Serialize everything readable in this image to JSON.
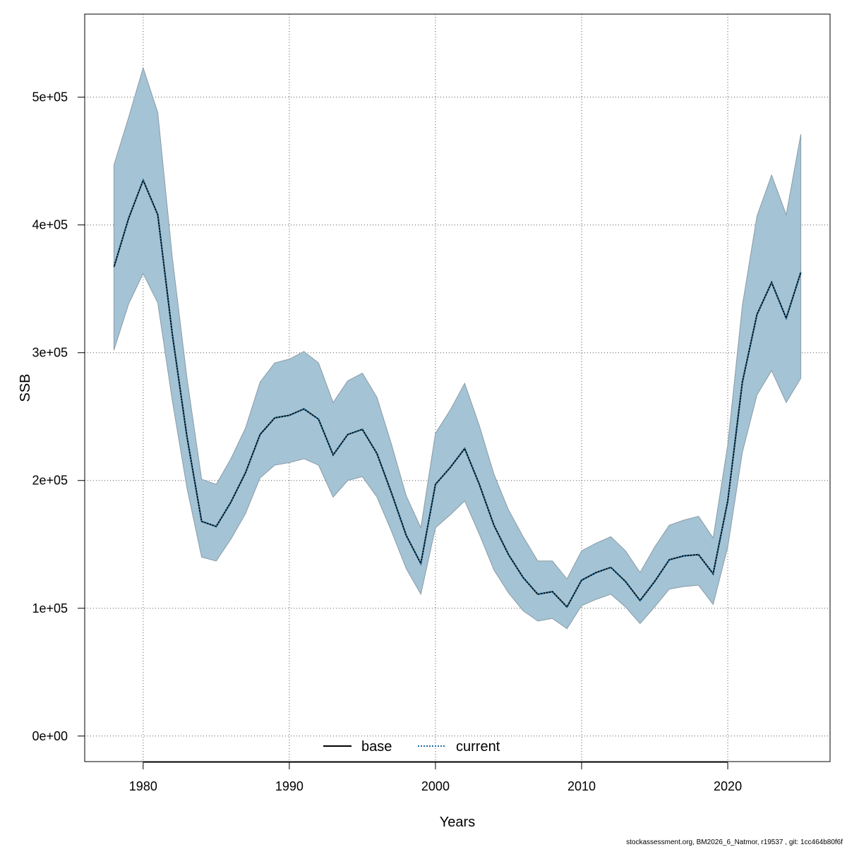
{
  "chart_data": {
    "type": "area",
    "xlabel": "Years",
    "ylabel": "SSB",
    "xlim": [
      1976,
      2027
    ],
    "ylim": [
      -20000,
      565000
    ],
    "x_ticks": [
      1980,
      1990,
      2000,
      2010,
      2020
    ],
    "x_tick_labels": [
      "1980",
      "1990",
      "2000",
      "2010",
      "2020"
    ],
    "y_ticks": [
      0,
      100000,
      200000,
      300000,
      400000,
      500000
    ],
    "y_tick_labels": [
      "0e+00",
      "1e+05",
      "2e+05",
      "3e+05",
      "4e+05",
      "5e+05"
    ],
    "grid": true,
    "legend_position": "bottom-center",
    "band_color": "#a4c3d4",
    "band_edge_color": "#8a9ca8",
    "x": [
      1978,
      1979,
      1980,
      1981,
      1982,
      1983,
      1984,
      1985,
      1986,
      1987,
      1988,
      1989,
      1990,
      1991,
      1992,
      1993,
      1994,
      1995,
      1996,
      1997,
      1998,
      1999,
      2000,
      2001,
      2002,
      2003,
      2004,
      2005,
      2006,
      2007,
      2008,
      2009,
      2010,
      2011,
      2012,
      2013,
      2014,
      2015,
      2016,
      2017,
      2018,
      2019,
      2020,
      2021,
      2022,
      2023,
      2024,
      2025
    ],
    "upper": [
      447000,
      484000,
      523000,
      488000,
      374000,
      280000,
      201000,
      197000,
      217000,
      241000,
      277000,
      292000,
      295000,
      301000,
      292000,
      261000,
      278000,
      284000,
      265000,
      228000,
      188000,
      163000,
      237000,
      255000,
      276000,
      243000,
      205000,
      177000,
      156000,
      137000,
      137000,
      123000,
      145000,
      151000,
      156000,
      145000,
      128000,
      148000,
      165000,
      169000,
      172000,
      155000,
      228000,
      337000,
      407000,
      439000,
      408000,
      471000
    ],
    "lower": [
      302000,
      338000,
      362000,
      339000,
      262000,
      194000,
      140000,
      137000,
      154000,
      174000,
      202000,
      212000,
      214000,
      217000,
      212000,
      187000,
      200000,
      203000,
      187000,
      160000,
      131000,
      111000,
      163000,
      173000,
      184000,
      158000,
      130000,
      112000,
      98000,
      90000,
      92000,
      84000,
      102000,
      107000,
      111000,
      101000,
      88000,
      101000,
      115000,
      117000,
      118000,
      103000,
      148000,
      222000,
      267000,
      286000,
      261000,
      280000
    ],
    "series": [
      {
        "name": "base",
        "style": "solid",
        "color": "#000000",
        "values": [
          367000,
          405000,
          435000,
          408000,
          314000,
          234000,
          168000,
          164000,
          183000,
          206000,
          236000,
          249000,
          251000,
          256000,
          248000,
          220000,
          236000,
          240000,
          221000,
          190000,
          157000,
          135000,
          197000,
          210000,
          225000,
          197000,
          165000,
          142000,
          124000,
          111000,
          113000,
          101000,
          122000,
          128000,
          132000,
          121000,
          106000,
          121000,
          138000,
          141000,
          142000,
          127000,
          184000,
          277000,
          330000,
          355000,
          327000,
          363000
        ]
      },
      {
        "name": "current",
        "style": "dotted",
        "color": "#1f6e9c",
        "values": [
          367000,
          405000,
          435000,
          408000,
          314000,
          234000,
          168000,
          164000,
          183000,
          206000,
          236000,
          249000,
          251000,
          256000,
          248000,
          220000,
          236000,
          240000,
          221000,
          190000,
          157000,
          135000,
          197000,
          210000,
          225000,
          197000,
          165000,
          142000,
          124000,
          111000,
          113000,
          101000,
          122000,
          128000,
          132000,
          121000,
          106000,
          121000,
          138000,
          141000,
          142000,
          127000,
          184000,
          277000,
          330000,
          355000,
          327000,
          363000
        ]
      }
    ]
  },
  "footer": "stockassessment.org, BM2026_6_Natmor, r19537 , git: 1cc464b80f6f"
}
